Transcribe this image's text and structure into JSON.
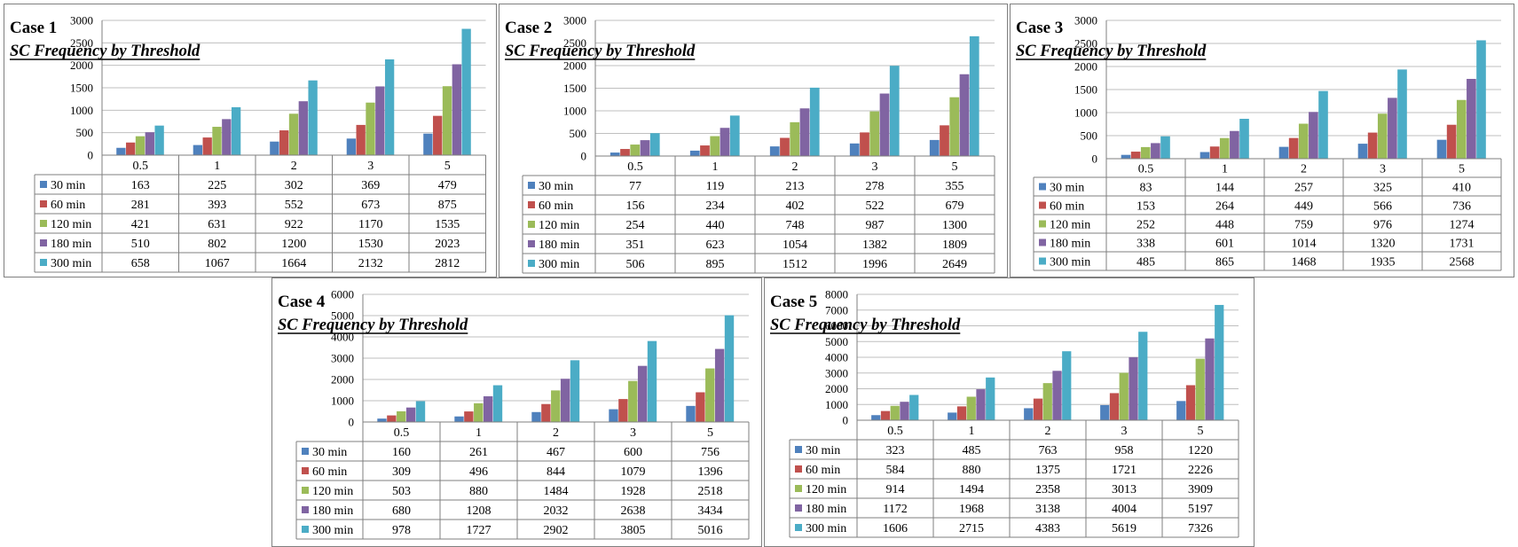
{
  "chart_data": [
    {
      "type": "bar",
      "title": "Case 1",
      "subtitle": "SC Frequency by Threshold",
      "categories": [
        "0.5",
        "1",
        "2",
        "3",
        "5"
      ],
      "ylim": [
        0,
        3000
      ],
      "yticks": [
        0,
        500,
        1000,
        1500,
        2000,
        2500,
        3000
      ],
      "series": [
        {
          "name": "30 min",
          "color": "#4f81bd",
          "values": [
            163,
            225,
            302,
            369,
            479
          ]
        },
        {
          "name": "60 min",
          "color": "#c0504d",
          "values": [
            281,
            393,
            552,
            673,
            875
          ]
        },
        {
          "name": "120 min",
          "color": "#9bbb59",
          "values": [
            421,
            631,
            922,
            1170,
            1535
          ]
        },
        {
          "name": "180 min",
          "color": "#8064a2",
          "values": [
            510,
            802,
            1200,
            1530,
            2023
          ]
        },
        {
          "name": "300 min",
          "color": "#4bacc6",
          "values": [
            658,
            1067,
            1664,
            2132,
            2812
          ]
        }
      ]
    },
    {
      "type": "bar",
      "title": "Case 2",
      "subtitle": "SC Frequency by Threshold",
      "categories": [
        "0.5",
        "1",
        "2",
        "3",
        "5"
      ],
      "ylim": [
        0,
        3000
      ],
      "yticks": [
        0,
        500,
        1000,
        1500,
        2000,
        2500,
        3000
      ],
      "series": [
        {
          "name": "30 min",
          "color": "#4f81bd",
          "values": [
            77,
            119,
            213,
            278,
            355
          ]
        },
        {
          "name": "60 min",
          "color": "#c0504d",
          "values": [
            156,
            234,
            402,
            522,
            679
          ]
        },
        {
          "name": "120 min",
          "color": "#9bbb59",
          "values": [
            254,
            440,
            748,
            987,
            1300
          ]
        },
        {
          "name": "180 min",
          "color": "#8064a2",
          "values": [
            351,
            623,
            1054,
            1382,
            1809
          ]
        },
        {
          "name": "300 min",
          "color": "#4bacc6",
          "values": [
            506,
            895,
            1512,
            1996,
            2649
          ]
        }
      ]
    },
    {
      "type": "bar",
      "title": "Case 3",
      "subtitle": "SC Frequency by Threshold",
      "categories": [
        "0.5",
        "1",
        "2",
        "3",
        "5"
      ],
      "ylim": [
        0,
        3000
      ],
      "yticks": [
        0,
        500,
        1000,
        1500,
        2000,
        2500,
        3000
      ],
      "series": [
        {
          "name": "30 min",
          "color": "#4f81bd",
          "values": [
            83,
            144,
            257,
            325,
            410
          ]
        },
        {
          "name": "60 min",
          "color": "#c0504d",
          "values": [
            153,
            264,
            449,
            566,
            736
          ]
        },
        {
          "name": "120 min",
          "color": "#9bbb59",
          "values": [
            252,
            448,
            759,
            976,
            1274
          ]
        },
        {
          "name": "180 min",
          "color": "#8064a2",
          "values": [
            338,
            601,
            1014,
            1320,
            1731
          ]
        },
        {
          "name": "300 min",
          "color": "#4bacc6",
          "values": [
            485,
            865,
            1468,
            1935,
            2568
          ]
        }
      ]
    },
    {
      "type": "bar",
      "title": "Case 4",
      "subtitle": "SC Frequency by Threshold",
      "categories": [
        "0.5",
        "1",
        "2",
        "3",
        "5"
      ],
      "ylim": [
        0,
        6000
      ],
      "yticks": [
        0,
        1000,
        2000,
        3000,
        4000,
        5000,
        6000
      ],
      "series": [
        {
          "name": "30 min",
          "color": "#4f81bd",
          "values": [
            160,
            261,
            467,
            600,
            756
          ]
        },
        {
          "name": "60 min",
          "color": "#c0504d",
          "values": [
            309,
            496,
            844,
            1079,
            1396
          ]
        },
        {
          "name": "120 min",
          "color": "#9bbb59",
          "values": [
            503,
            880,
            1484,
            1928,
            2518
          ]
        },
        {
          "name": "180 min",
          "color": "#8064a2",
          "values": [
            680,
            1208,
            2032,
            2638,
            3434
          ]
        },
        {
          "name": "300 min",
          "color": "#4bacc6",
          "values": [
            978,
            1727,
            2902,
            3805,
            5016
          ]
        }
      ]
    },
    {
      "type": "bar",
      "title": "Case 5",
      "subtitle": "SC Frequency by Threshold",
      "categories": [
        "0.5",
        "1",
        "2",
        "3",
        "5"
      ],
      "ylim": [
        0,
        8000
      ],
      "yticks": [
        0,
        1000,
        2000,
        3000,
        4000,
        5000,
        6000,
        7000,
        8000
      ],
      "series": [
        {
          "name": "30 min",
          "color": "#4f81bd",
          "values": [
            323,
            485,
            763,
            958,
            1220
          ]
        },
        {
          "name": "60 min",
          "color": "#c0504d",
          "values": [
            584,
            880,
            1375,
            1721,
            2226
          ]
        },
        {
          "name": "120 min",
          "color": "#9bbb59",
          "values": [
            914,
            1494,
            2358,
            3013,
            3909
          ]
        },
        {
          "name": "180 min",
          "color": "#8064a2",
          "values": [
            1172,
            1968,
            3138,
            4004,
            5197
          ]
        },
        {
          "name": "300 min",
          "color": "#4bacc6",
          "values": [
            1606,
            2715,
            4383,
            5619,
            7326
          ]
        }
      ]
    }
  ]
}
